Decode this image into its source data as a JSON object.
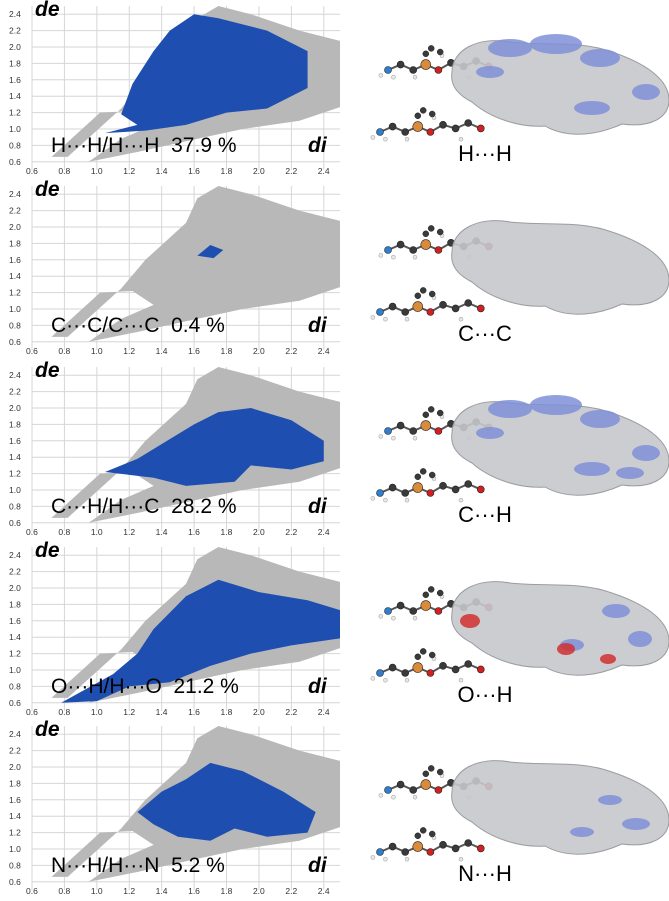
{
  "axis": {
    "de_label": "de",
    "di_label": "di",
    "y_ticks": [
      "2.4",
      "2.2",
      "2.0",
      "1.8",
      "1.6",
      "1.4",
      "1.2",
      "1.0",
      "0.8",
      "0.6"
    ],
    "x_ticks": [
      "0.6",
      "0.8",
      "1.0",
      "1.2",
      "1.4",
      "1.6",
      "1.8",
      "2.0",
      "2.2",
      "2.4"
    ]
  },
  "colors": {
    "fingerprint_gray": "#b8b8b8",
    "fingerprint_blue": "#1e4fb0",
    "surface_gray": "#c6c8cc",
    "surface_blue": "#7f8fd8",
    "surface_red": "#d03030",
    "atom_carbon": "#3a3a3a",
    "atom_copper": "#d98a3a",
    "atom_nitrogen": "#2f7fd0",
    "atom_oxygen": "#d02020",
    "atom_hydrogen": "#e8e8e8"
  },
  "rows": [
    {
      "label": "H···H/H···H  37.9 %",
      "caption": "H···H",
      "percent": 37.9
    },
    {
      "label": "C···C/C···C  0.4 %",
      "caption": "C···C",
      "percent": 0.4
    },
    {
      "label": "C···H/H···C  28.2 %",
      "caption": "C···H",
      "percent": 28.2
    },
    {
      "label": "O···H/H···O  21.2 %",
      "caption": "O···H",
      "percent": 21.2
    },
    {
      "label": "N···H/H···N  5.2 %",
      "caption": "N···H",
      "percent": 5.2
    }
  ]
}
